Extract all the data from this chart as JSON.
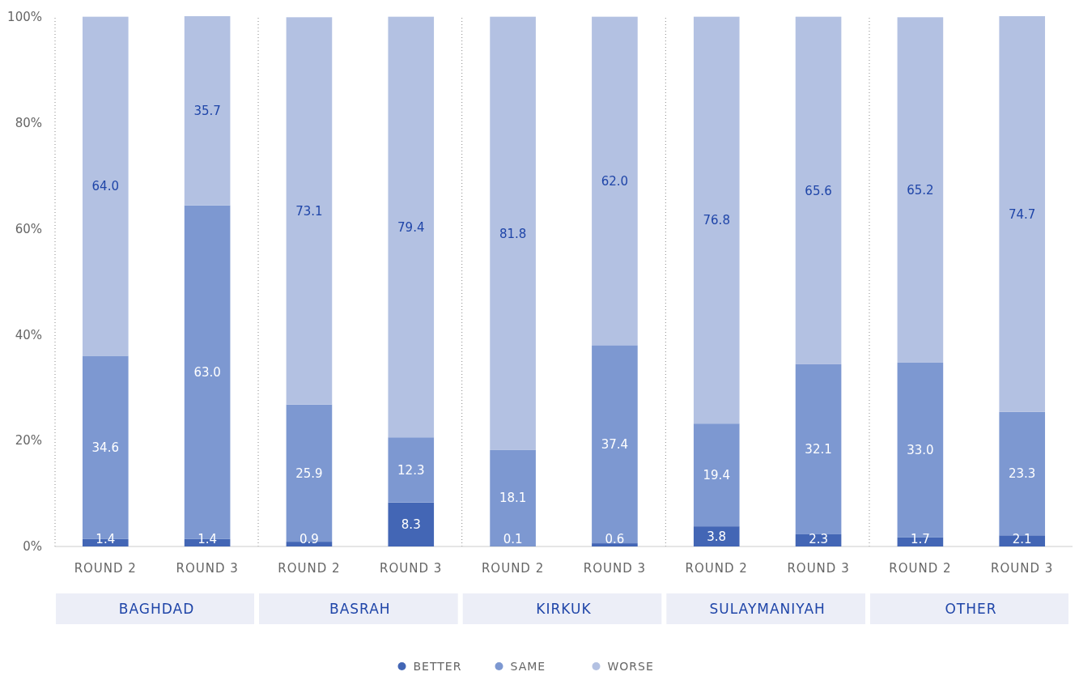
{
  "chart_data": {
    "type": "bar",
    "stacked": true,
    "categories": [
      "ROUND 2",
      "ROUND 3",
      "ROUND 2",
      "ROUND 3",
      "ROUND 2",
      "ROUND 3",
      "ROUND 2",
      "ROUND 3",
      "ROUND 2",
      "ROUND 3"
    ],
    "series": [
      {
        "name": "BETTER",
        "color": "#4366b5",
        "values": [
          1.4,
          1.4,
          0.9,
          8.3,
          0.1,
          0.6,
          3.8,
          2.3,
          1.7,
          2.1
        ],
        "value_labels": [
          "1.4",
          "1.4",
          "0.9",
          "8.3",
          "0.1",
          "0.6",
          "3.8",
          "2.3",
          "1.7",
          "2.1"
        ]
      },
      {
        "name": "SAME",
        "color": "#7d98d1",
        "values": [
          34.6,
          63.0,
          25.9,
          12.3,
          18.1,
          37.4,
          19.4,
          32.1,
          33.0,
          23.3
        ],
        "value_labels": [
          "34.6",
          "63.0",
          "25.9",
          "12.3",
          "18.1",
          "37.4",
          "19.4",
          "32.1",
          "33.0",
          "23.3"
        ]
      },
      {
        "name": "WORSE",
        "color": "#b3c1e2",
        "values": [
          64.0,
          35.7,
          73.1,
          79.4,
          81.8,
          62.0,
          76.8,
          65.6,
          65.2,
          74.7
        ],
        "value_labels": [
          "64.0",
          "35.7",
          "73.1",
          "79.4",
          "81.8",
          "62.0",
          "76.8",
          "65.6",
          "65.2",
          "74.7"
        ]
      }
    ],
    "ylim": [
      0,
      100.1
    ],
    "yticks": [
      {
        "value": 0,
        "label": "0%"
      },
      {
        "value": 20,
        "label": "20%"
      },
      {
        "value": 40,
        "label": "40%"
      },
      {
        "value": 60,
        "label": "60%"
      },
      {
        "value": 80,
        "label": "80%"
      },
      {
        "value": 100,
        "label": "100%"
      }
    ],
    "annotations": [
      "BAGHDAD",
      "BASRAH",
      "KIRKUK",
      "SULAYMANIYAH",
      "OTHER"
    ],
    "legend": "bottom"
  }
}
